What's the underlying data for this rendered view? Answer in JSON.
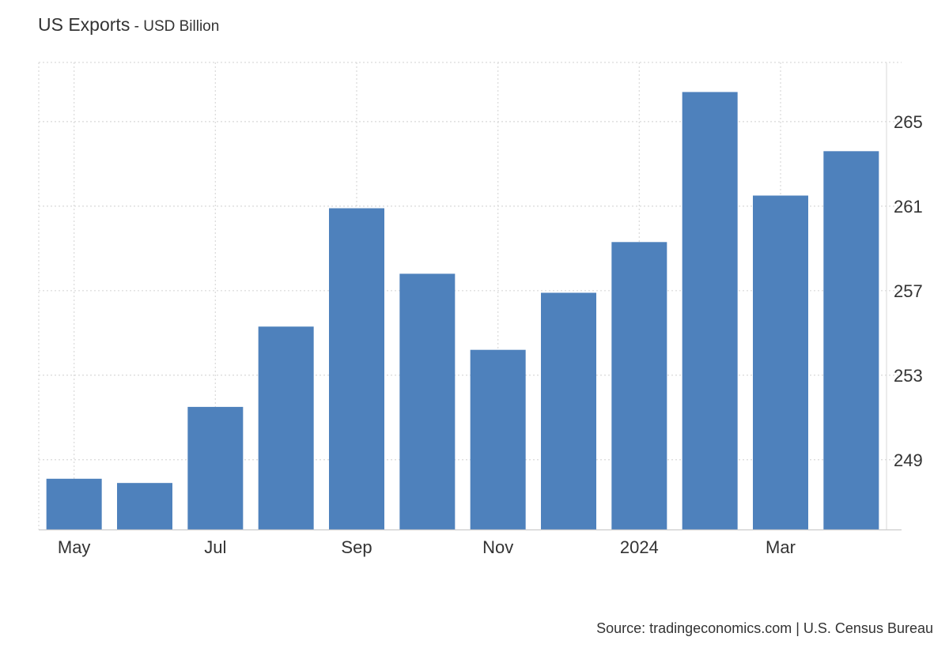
{
  "title": {
    "main": "US Exports",
    "separator": " - ",
    "unit": "USD Billion"
  },
  "source": {
    "prefix": "Source: ",
    "site": "tradingeconomics.com",
    "divider": " | ",
    "agency": "U.S. Census Bureau"
  },
  "colors": {
    "bar": "#4e81bc",
    "grid": "#d9d9d9",
    "axis": "#cccccc",
    "text": "#333333"
  },
  "chart_data": {
    "type": "bar",
    "categories": [
      "2023-05",
      "2023-06",
      "2023-07",
      "2023-08",
      "2023-09",
      "2023-10",
      "2023-11",
      "2023-12",
      "2024-01",
      "2024-02",
      "2024-03",
      "2024-04"
    ],
    "x_tick_labels": [
      {
        "category": "2023-05",
        "label": "May"
      },
      {
        "category": "2023-07",
        "label": "Jul"
      },
      {
        "category": "2023-09",
        "label": "Sep"
      },
      {
        "category": "2023-11",
        "label": "Nov"
      },
      {
        "category": "2024-01",
        "label": "2024"
      },
      {
        "category": "2024-03",
        "label": "Mar"
      }
    ],
    "series": [
      {
        "values": [
          248.1,
          247.9,
          251.5,
          255.3,
          260.9,
          257.8,
          254.2,
          256.9,
          259.3,
          266.4,
          261.5,
          263.6
        ]
      }
    ],
    "ylim": [
      245.7,
      267.8
    ],
    "yticks": [
      249,
      253,
      257,
      261,
      265
    ],
    "y_axis_position": "right",
    "grid": true,
    "legend": "none"
  }
}
